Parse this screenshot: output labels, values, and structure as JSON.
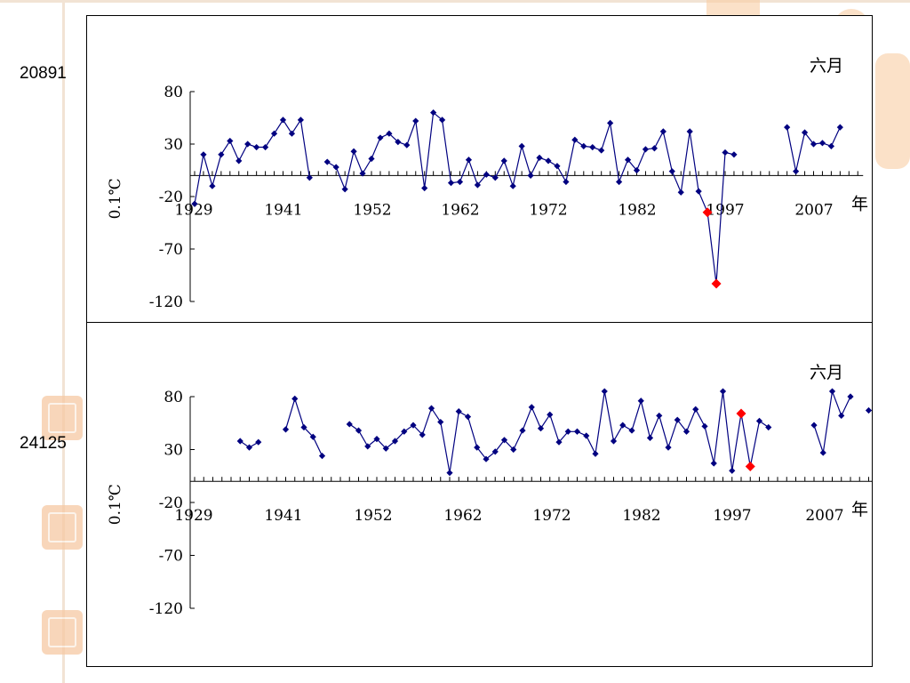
{
  "chart_data": [
    {
      "type": "line",
      "station": "20891",
      "month_label": "六月",
      "ylabel": "0.1℃",
      "xlabel": "年",
      "xtick_labels": [
        "1929",
        "1941",
        "1952",
        "1962",
        "1972",
        "1982",
        "1997",
        "2007"
      ],
      "yticks": [
        80,
        30,
        -20,
        -70,
        -120
      ],
      "ylim": [
        -120,
        80
      ],
      "xlim": [
        1929,
        2010
      ],
      "series": [
        {
          "color": "#000080",
          "points": [
            [
              1929,
              -27
            ],
            [
              1930,
              20
            ],
            [
              1931,
              -10
            ],
            [
              1932,
              20
            ],
            [
              1933,
              33
            ],
            [
              1934,
              14
            ],
            [
              1935,
              30
            ],
            [
              1936,
              27
            ],
            [
              1937,
              27
            ],
            [
              1938,
              40
            ],
            [
              1939,
              53
            ],
            [
              1940,
              40
            ],
            [
              1941,
              53
            ],
            [
              1942,
              -2
            ],
            [
              1944,
              13
            ],
            [
              1945,
              8
            ],
            [
              1946,
              -13
            ],
            [
              1947,
              23
            ],
            [
              1948,
              2
            ],
            [
              1949,
              16
            ],
            [
              1950,
              36
            ],
            [
              1951,
              40
            ],
            [
              1952,
              32
            ],
            [
              1953,
              29
            ],
            [
              1954,
              52
            ],
            [
              1955,
              -12
            ],
            [
              1956,
              60
            ],
            [
              1957,
              53
            ],
            [
              1958,
              -7
            ],
            [
              1959,
              -6
            ],
            [
              1960,
              15
            ],
            [
              1961,
              -9
            ],
            [
              1962,
              1
            ],
            [
              1963,
              -2
            ],
            [
              1964,
              14
            ],
            [
              1965,
              -10
            ],
            [
              1966,
              28
            ],
            [
              1967,
              0
            ],
            [
              1968,
              17
            ],
            [
              1969,
              14
            ],
            [
              1970,
              9
            ],
            [
              1971,
              -6
            ],
            [
              1972,
              34
            ],
            [
              1973,
              28
            ],
            [
              1974,
              27
            ],
            [
              1975,
              24
            ],
            [
              1976,
              50
            ],
            [
              1977,
              -6
            ],
            [
              1978,
              15
            ],
            [
              1979,
              5
            ],
            [
              1980,
              25
            ],
            [
              1981,
              26
            ],
            [
              1982,
              42
            ],
            [
              1983,
              4
            ],
            [
              1984,
              -16
            ],
            [
              1985,
              42
            ],
            [
              1986,
              -15
            ],
            [
              1987,
              -35
            ],
            [
              1988,
              -103
            ],
            [
              1989,
              22
            ],
            [
              1990,
              20
            ],
            [
              1996,
              46
            ],
            [
              1997,
              4
            ],
            [
              1998,
              41
            ],
            [
              1999,
              30
            ],
            [
              2000,
              31
            ],
            [
              2001,
              28
            ],
            [
              2002,
              46
            ]
          ]
        }
      ],
      "highlight": {
        "color": "#ff0000",
        "points": [
          [
            1987,
            -35
          ],
          [
            1988,
            -103
          ]
        ]
      }
    },
    {
      "type": "line",
      "station": "24125",
      "month_label": "六月",
      "ylabel": "0.1℃",
      "xlabel": "年",
      "xtick_labels": [
        "1929",
        "1941",
        "1952",
        "1962",
        "1972",
        "1982",
        "1997",
        "2007"
      ],
      "yticks": [
        80,
        30,
        -20,
        -70,
        -120
      ],
      "ylim": [
        -120,
        80
      ],
      "xlim": [
        1929,
        2010
      ],
      "series": [
        {
          "color": "#000080",
          "points": [
            [
              1934,
              38
            ],
            [
              1935,
              32
            ],
            [
              1936,
              37
            ],
            [
              1939,
              49
            ],
            [
              1940,
              78
            ],
            [
              1941,
              51
            ],
            [
              1942,
              42
            ],
            [
              1943,
              24
            ],
            [
              1946,
              54
            ],
            [
              1947,
              48
            ],
            [
              1948,
              33
            ],
            [
              1949,
              40
            ],
            [
              1950,
              31
            ],
            [
              1951,
              38
            ],
            [
              1952,
              47
            ],
            [
              1953,
              53
            ],
            [
              1954,
              44
            ],
            [
              1955,
              69
            ],
            [
              1956,
              56
            ],
            [
              1957,
              8
            ],
            [
              1958,
              66
            ],
            [
              1959,
              61
            ],
            [
              1960,
              32
            ],
            [
              1961,
              21
            ],
            [
              1962,
              28
            ],
            [
              1963,
              39
            ],
            [
              1964,
              30
            ],
            [
              1965,
              48
            ],
            [
              1966,
              70
            ],
            [
              1967,
              50
            ],
            [
              1968,
              63
            ],
            [
              1969,
              37
            ],
            [
              1970,
              47
            ],
            [
              1971,
              47
            ],
            [
              1972,
              43
            ],
            [
              1973,
              26
            ],
            [
              1974,
              85
            ],
            [
              1975,
              38
            ],
            [
              1976,
              53
            ],
            [
              1977,
              48
            ],
            [
              1978,
              76
            ],
            [
              1979,
              41
            ],
            [
              1980,
              62
            ],
            [
              1981,
              32
            ],
            [
              1982,
              58
            ],
            [
              1983,
              47
            ],
            [
              1984,
              68
            ],
            [
              1985,
              52
            ],
            [
              1986,
              17
            ],
            [
              1987,
              85
            ],
            [
              1988,
              10
            ],
            [
              1989,
              64
            ],
            [
              1990,
              14
            ],
            [
              1991,
              57
            ],
            [
              1992,
              51
            ],
            [
              1997,
              53
            ],
            [
              1998,
              27
            ],
            [
              1999,
              85
            ],
            [
              2000,
              62
            ],
            [
              2001,
              80
            ]
          ]
        },
        {
          "color": "#000080",
          "points": [
            [
              2003,
              67
            ]
          ]
        }
      ],
      "highlight": {
        "color": "#ff0000",
        "points": [
          [
            1989,
            64
          ],
          [
            1990,
            14
          ]
        ]
      }
    }
  ]
}
